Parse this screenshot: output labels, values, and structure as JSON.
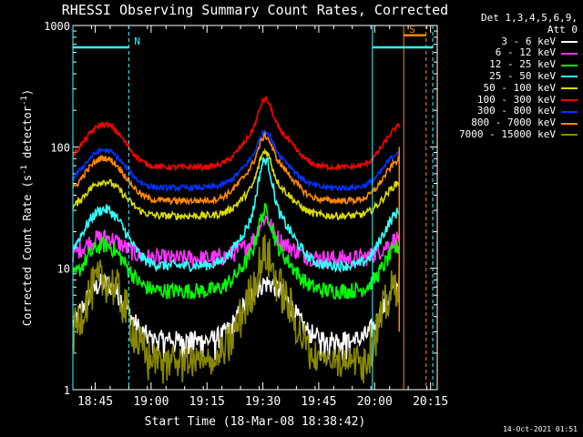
{
  "chart_data": {
    "type": "line",
    "title": "RHESSI Observing Summary Count Rates, Corrected",
    "xlabel": "Start Time (18-Mar-08 18:38:42)",
    "ylabel_parts": {
      "pre": "Corrected Count Rate (s",
      "sup1": "-1",
      "mid": " detector",
      "sup2": "-1",
      "post": ")"
    },
    "y_scale": "log",
    "ylim": [
      1,
      1000
    ],
    "y_ticks": [
      {
        "value": 1,
        "label": "1"
      },
      {
        "value": 10,
        "label": "10"
      },
      {
        "value": 100,
        "label": "100"
      },
      {
        "value": 1000,
        "label": "1000"
      }
    ],
    "xlim_minutes": [
      18.65,
      20.28
    ],
    "x_ticks": [
      {
        "value": 18.75,
        "label": "18:45"
      },
      {
        "value": 19.0,
        "label": "19:00"
      },
      {
        "value": 19.25,
        "label": "19:15"
      },
      {
        "value": 19.5,
        "label": "19:30"
      },
      {
        "value": 19.75,
        "label": "19:45"
      },
      {
        "value": 20.0,
        "label": "20:00"
      },
      {
        "value": 20.25,
        "label": "20:15"
      }
    ],
    "data_end_hours": 20.11,
    "legend_header": [
      "Det 1,3,4,5,6,9,",
      "Att 0"
    ],
    "series": [
      {
        "name": "3 - 6 keV",
        "color": "#ffffff",
        "base": 2.5,
        "orbit_amp": 5.0,
        "flare": 0,
        "noise": 0.12,
        "floor": 1.7
      },
      {
        "name": "6 - 12 keV",
        "color": "#ff33ff",
        "base": 12,
        "orbit_amp": 6,
        "flare": 8,
        "noise": 0.1
      },
      {
        "name": "12 - 25 keV",
        "color": "#00ff00",
        "base": 6.5,
        "orbit_amp": 9,
        "flare": 14,
        "noise": 0.09
      },
      {
        "name": "25 - 50 keV",
        "color": "#33ffff",
        "base": 10.5,
        "orbit_amp": 20,
        "flare": 48,
        "noise": 0.06
      },
      {
        "name": "50 - 100 keV",
        "color": "#dddd00",
        "base": 27,
        "orbit_amp": 25,
        "flare": 40,
        "noise": 0.04
      },
      {
        "name": "100 - 300 keV",
        "color": "#ff0000",
        "base": 68,
        "orbit_amp": 85,
        "flare": 95,
        "noise": 0.03
      },
      {
        "name": "300 - 800 keV",
        "color": "#0033ff",
        "base": 46,
        "orbit_amp": 48,
        "flare": 42,
        "noise": 0.03
      },
      {
        "name": "800 - 7000 keV",
        "color": "#ff8800",
        "base": 36,
        "orbit_amp": 45,
        "flare": 42,
        "noise": 0.035
      },
      {
        "name": "7000 - 15000 keV",
        "color": "#888800",
        "base": 1.5,
        "orbit_amp": 6.5,
        "flare": 5,
        "noise": 0.25,
        "floor": 1.05
      }
    ],
    "annotations": [
      {
        "label": "N",
        "color": "#33ffff",
        "bar_from": 18.65,
        "bar_to": 18.9,
        "bar_y": 660,
        "line_x": 18.9,
        "line_style": "dashed",
        "extra_line_x": 18.65,
        "extra_style": "solid"
      },
      {
        "label": "S",
        "color": "#ff8800",
        "bar_from": 20.13,
        "bar_to": 20.23,
        "bar_y": 830,
        "line_x": 20.13,
        "line_style": "solid",
        "extra_line_x": 20.23,
        "extra_style": "dashed"
      },
      {
        "label": "",
        "color": "#33ffff",
        "bar_from": 19.99,
        "bar_to": 20.26,
        "bar_y": 660,
        "line_x": 19.99,
        "line_style": "solid",
        "extra_line_x": 20.26,
        "extra_style": "dashed"
      }
    ]
  },
  "footer_date": "14-Oct-2021 01:51"
}
